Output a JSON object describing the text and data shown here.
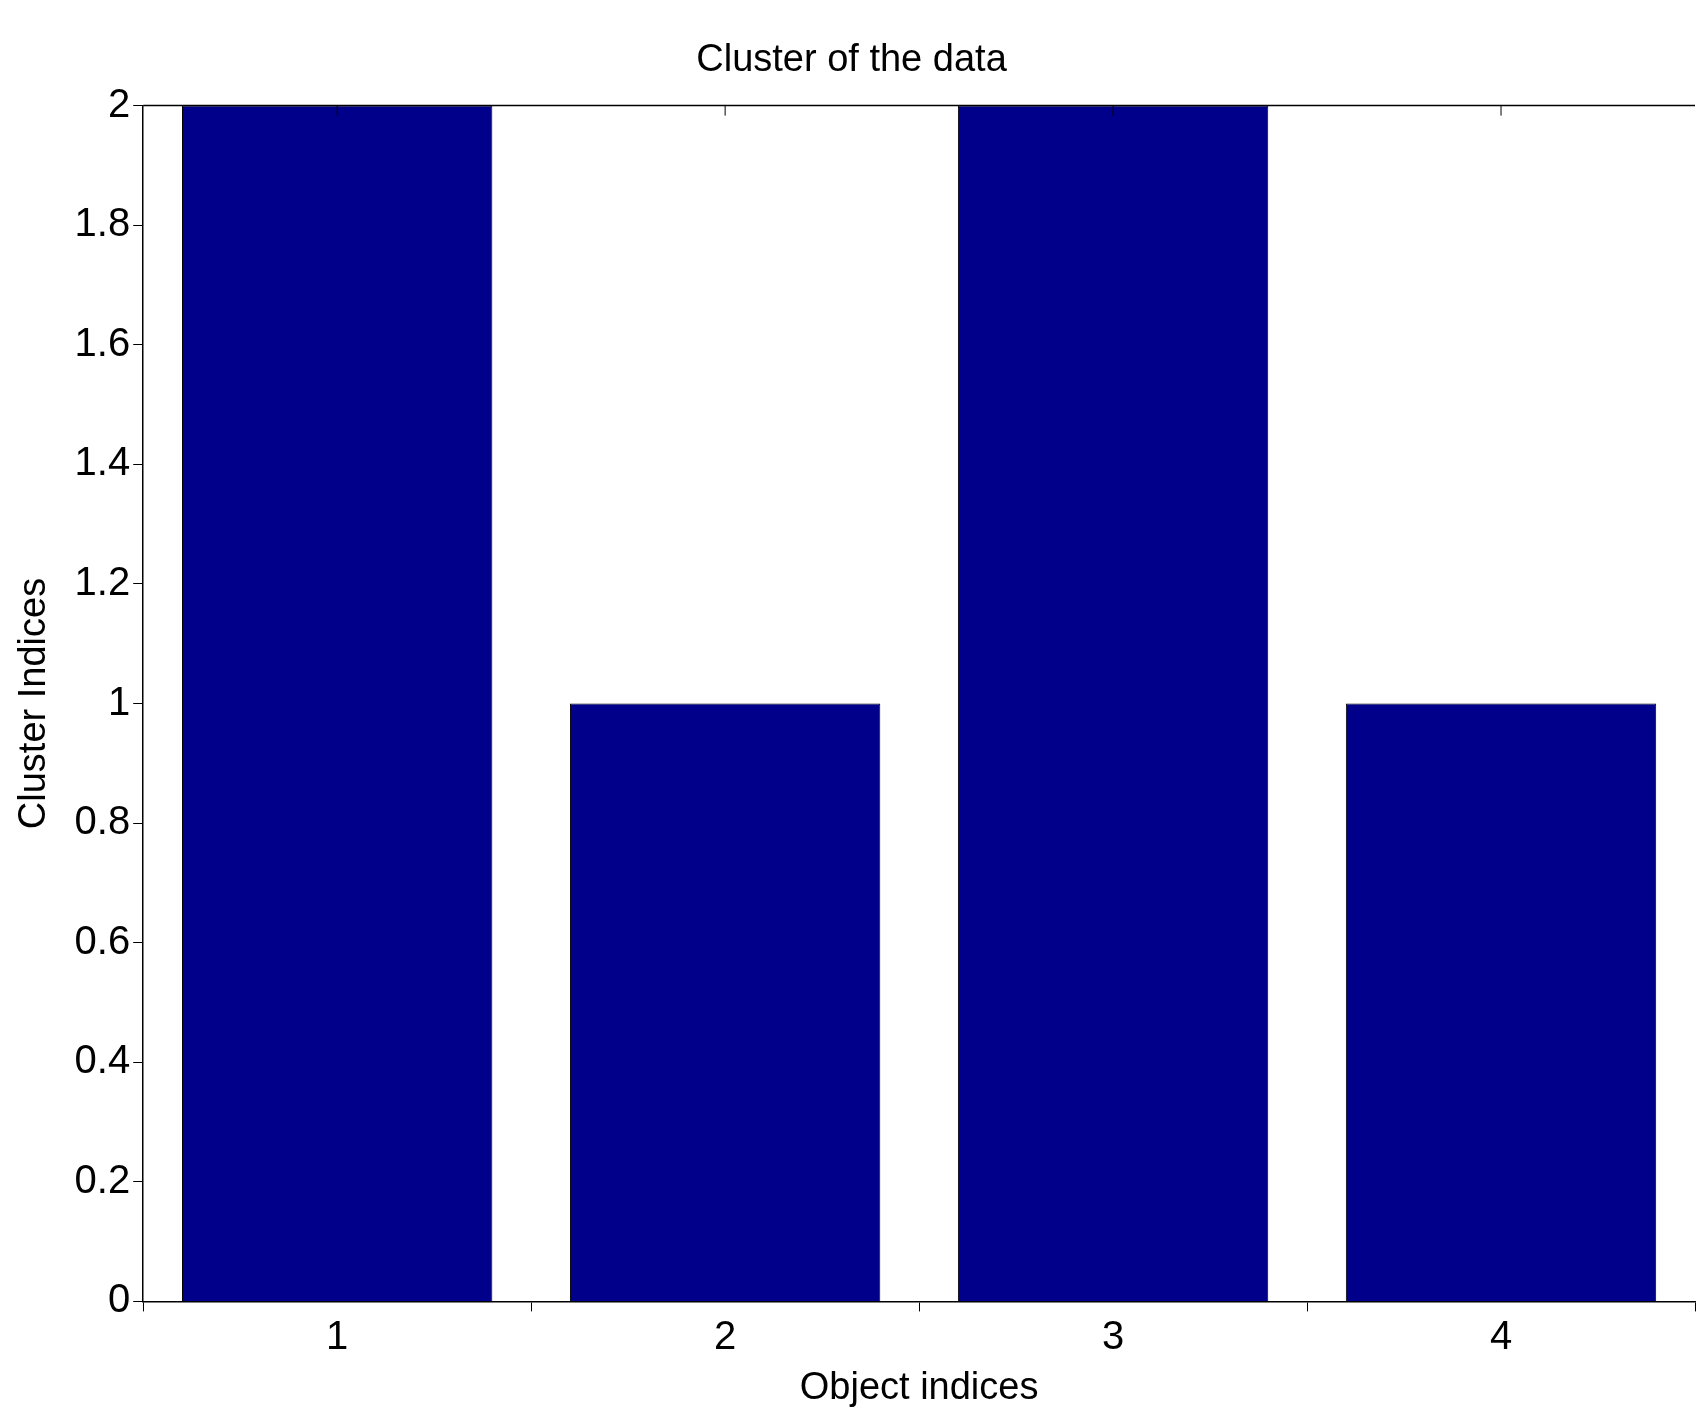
{
  "chart_data": {
    "type": "bar",
    "title": "Cluster of the data",
    "xlabel": "Object indices",
    "ylabel": "Cluster Indices",
    "categories": [
      "1",
      "2",
      "3",
      "4"
    ],
    "values": [
      2,
      1,
      2,
      1
    ],
    "color": "#00008b",
    "ylim": [
      0,
      2
    ],
    "yticks": [
      0,
      {
        "value": 0.2,
        "label": "0.2"
      },
      {
        "value": 0.4,
        "label": "0.4"
      },
      {
        "value": 0.6,
        "label": "0.6"
      },
      {
        "value": 0.8,
        "label": "0.8"
      },
      1,
      {
        "value": 1.2,
        "label": "1.2"
      },
      {
        "value": 1.4,
        "label": "1.4"
      },
      {
        "value": 1.6,
        "label": "1.6"
      },
      {
        "value": 1.8,
        "label": "1.8"
      },
      2
    ],
    "grid": false,
    "legend": false
  }
}
